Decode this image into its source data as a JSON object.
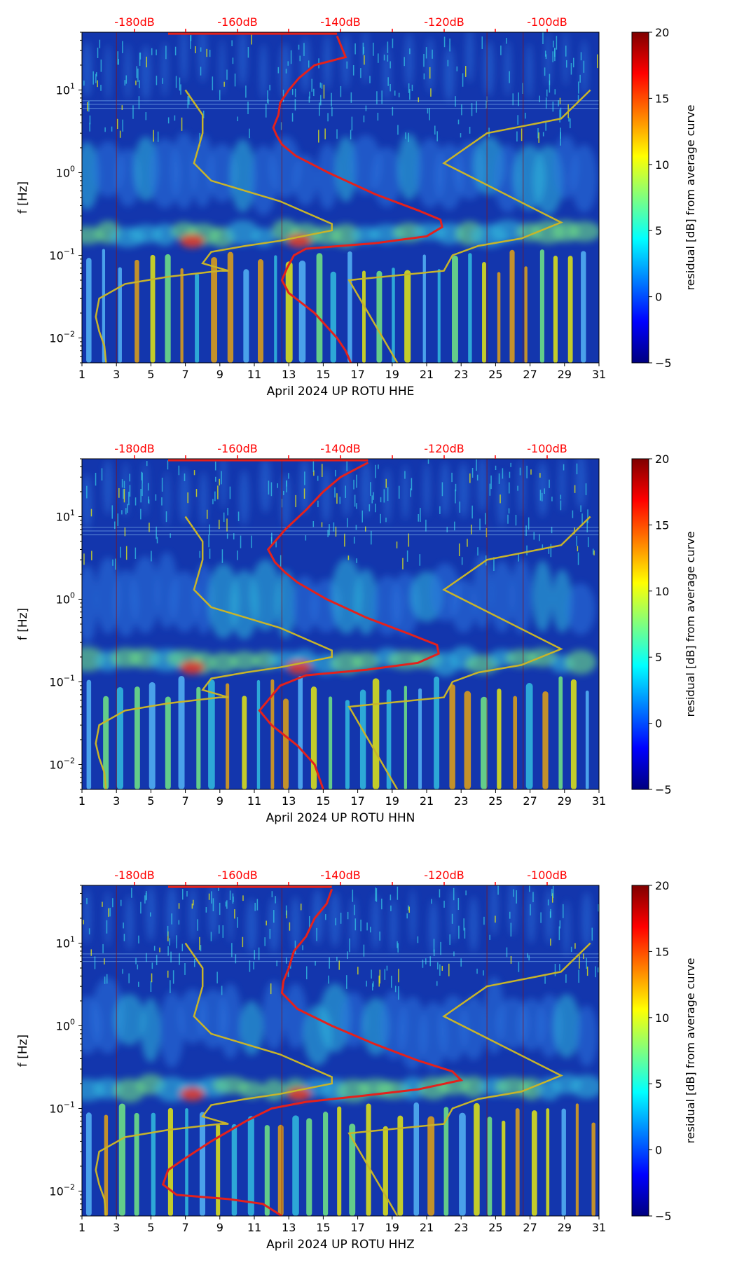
{
  "colors": {
    "spec_background": "#1336ad",
    "spec_light_blue": "#2f7fe8",
    "spec_cyan": "#37cfe6",
    "top_axis_red": "#ff0000",
    "psd_curve": "#e4211c",
    "noise_model": "#c8b42a",
    "colorbar_stops": [
      "#00007f",
      "#0000ff",
      "#007fff",
      "#00ffff",
      "#7fff7f",
      "#ffff00",
      "#ff7f00",
      "#ff0000",
      "#7f0000"
    ]
  },
  "shared": {
    "y_axis_label": "f [Hz]",
    "y_ticks": [
      {
        "value": 10,
        "base": "10",
        "exp": "1"
      },
      {
        "value": 1,
        "base": "10",
        "exp": "0"
      },
      {
        "value": 0.1,
        "base": "10",
        "exp": "−1"
      },
      {
        "value": 0.01,
        "base": "10",
        "exp": "−2"
      }
    ],
    "x_ticks": [
      "1",
      "3",
      "5",
      "7",
      "9",
      "11",
      "13",
      "15",
      "17",
      "19",
      "21",
      "23",
      "25",
      "27",
      "29",
      "31"
    ],
    "top_ticks": [
      "-180dB",
      "-160dB",
      "-140dB",
      "-120dB",
      "-100dB"
    ],
    "colorbar_label": "residual [dB] from average curve",
    "colorbar_ticks": [
      "20",
      "15",
      "10",
      "5",
      "0",
      "−5"
    ]
  },
  "chart_data": [
    {
      "type": "heatmap",
      "channel": "HHE",
      "xlabel": "April 2024 UP ROTU  HHE",
      "ylabel": "f [Hz]",
      "x_range": [
        1,
        31
      ],
      "y_range_hz": [
        0.005,
        50
      ],
      "y_scale": "log",
      "colorbar_range_db": [
        -5,
        20
      ],
      "top_axis_db": [
        -180,
        -160,
        -140,
        -120,
        -100
      ],
      "psd_curve_day_hz": [
        [
          15.8,
          45
        ],
        [
          16.3,
          25
        ],
        [
          14.5,
          20
        ],
        [
          13.6,
          14
        ],
        [
          13.0,
          10
        ],
        [
          12.5,
          7
        ],
        [
          12.4,
          5
        ],
        [
          12.1,
          3.5
        ],
        [
          12.3,
          2.8
        ],
        [
          12.6,
          2.2
        ],
        [
          13.4,
          1.6
        ],
        [
          15.3,
          1.0
        ],
        [
          18.0,
          0.55
        ],
        [
          20.5,
          0.35
        ],
        [
          21.8,
          0.27
        ],
        [
          21.9,
          0.22
        ],
        [
          21.0,
          0.17
        ],
        [
          18.0,
          0.14
        ],
        [
          14.0,
          0.12
        ],
        [
          13.3,
          0.1
        ],
        [
          12.9,
          0.07
        ],
        [
          12.6,
          0.05
        ],
        [
          13.0,
          0.035
        ],
        [
          14.5,
          0.02
        ],
        [
          15.8,
          0.01
        ],
        [
          16.3,
          0.007
        ],
        [
          16.6,
          0.005
        ]
      ],
      "noise_model_day_hz": [
        [
          7.0,
          10
        ],
        [
          8.0,
          5
        ],
        [
          8.0,
          3.0
        ],
        [
          7.5,
          1.3
        ],
        [
          8.5,
          0.8
        ],
        [
          12.5,
          0.45
        ],
        [
          15.5,
          0.24
        ],
        [
          15.5,
          0.2
        ],
        [
          12.5,
          0.15
        ],
        [
          10.5,
          0.13
        ],
        [
          8.5,
          0.11
        ],
        [
          8.0,
          0.08
        ],
        [
          9.5,
          0.065
        ],
        [
          9.0,
          0.065
        ],
        [
          6.0,
          0.055
        ],
        [
          3.5,
          0.045
        ],
        [
          2.0,
          0.03
        ],
        [
          1.8,
          0.018
        ],
        [
          2.0,
          0.012
        ],
        [
          2.3,
          0.008
        ],
        [
          2.4,
          0.005
        ]
      ],
      "high_noise_model_day_hz": [
        [
          30.5,
          10
        ],
        [
          28.8,
          4.5
        ],
        [
          24.5,
          3.0
        ],
        [
          22.0,
          1.3
        ],
        [
          28.8,
          0.25
        ],
        [
          26.5,
          0.16
        ],
        [
          24.0,
          0.13
        ],
        [
          22.5,
          0.1
        ],
        [
          22.0,
          0.065
        ],
        [
          16.5,
          0.05
        ],
        [
          19.3,
          0.005
        ]
      ]
    },
    {
      "type": "heatmap",
      "channel": "HHN",
      "xlabel": "April 2024 UP ROTU  HHN",
      "ylabel": "f [Hz]",
      "x_range": [
        1,
        31
      ],
      "y_range_hz": [
        0.005,
        50
      ],
      "y_scale": "log",
      "colorbar_range_db": [
        -5,
        20
      ],
      "top_axis_db": [
        -180,
        -160,
        -140,
        -120,
        -100
      ],
      "psd_curve_day_hz": [
        [
          17.6,
          45
        ],
        [
          16.0,
          30
        ],
        [
          15.0,
          20
        ],
        [
          14.0,
          12
        ],
        [
          12.8,
          7
        ],
        [
          11.8,
          4.0
        ],
        [
          12.2,
          2.8
        ],
        [
          12.8,
          2.1
        ],
        [
          13.5,
          1.6
        ],
        [
          15.2,
          1.0
        ],
        [
          17.5,
          0.6
        ],
        [
          20.0,
          0.38
        ],
        [
          21.6,
          0.28
        ],
        [
          21.7,
          0.22
        ],
        [
          20.5,
          0.17
        ],
        [
          17.5,
          0.14
        ],
        [
          14.0,
          0.12
        ],
        [
          12.5,
          0.09
        ],
        [
          11.8,
          0.06
        ],
        [
          11.3,
          0.045
        ],
        [
          12.0,
          0.03
        ],
        [
          13.5,
          0.017
        ],
        [
          14.5,
          0.01
        ],
        [
          15.0,
          0.005
        ]
      ],
      "noise_model_day_hz": [
        [
          7.0,
          10
        ],
        [
          8.0,
          5
        ],
        [
          8.0,
          3.0
        ],
        [
          7.5,
          1.3
        ],
        [
          8.5,
          0.8
        ],
        [
          12.5,
          0.45
        ],
        [
          15.5,
          0.24
        ],
        [
          15.5,
          0.2
        ],
        [
          12.5,
          0.15
        ],
        [
          10.5,
          0.13
        ],
        [
          8.5,
          0.11
        ],
        [
          8.0,
          0.08
        ],
        [
          9.5,
          0.065
        ],
        [
          9.0,
          0.065
        ],
        [
          6.0,
          0.055
        ],
        [
          3.5,
          0.045
        ],
        [
          2.0,
          0.03
        ],
        [
          1.8,
          0.018
        ],
        [
          2.0,
          0.012
        ],
        [
          2.3,
          0.008
        ],
        [
          2.4,
          0.005
        ]
      ],
      "high_noise_model_day_hz": [
        [
          30.5,
          10
        ],
        [
          28.8,
          4.5
        ],
        [
          24.5,
          3.0
        ],
        [
          22.0,
          1.3
        ],
        [
          28.8,
          0.25
        ],
        [
          26.5,
          0.16
        ],
        [
          24.0,
          0.13
        ],
        [
          22.5,
          0.1
        ],
        [
          22.0,
          0.065
        ],
        [
          16.5,
          0.05
        ],
        [
          19.3,
          0.005
        ]
      ]
    },
    {
      "type": "heatmap",
      "channel": "HHZ",
      "xlabel": "April 2024 UP ROTU  HHZ",
      "ylabel": "f [Hz]",
      "x_range": [
        1,
        31
      ],
      "y_range_hz": [
        0.005,
        50
      ],
      "y_scale": "log",
      "colorbar_range_db": [
        -5,
        20
      ],
      "top_axis_db": [
        -180,
        -160,
        -140,
        -120,
        -100
      ],
      "psd_curve_day_hz": [
        [
          15.5,
          45
        ],
        [
          15.2,
          30
        ],
        [
          14.5,
          20
        ],
        [
          14.0,
          12
        ],
        [
          13.3,
          8
        ],
        [
          13.0,
          5
        ],
        [
          12.7,
          3.5
        ],
        [
          12.6,
          2.5
        ],
        [
          13.5,
          1.6
        ],
        [
          15.5,
          1.0
        ],
        [
          18.0,
          0.6
        ],
        [
          20.5,
          0.38
        ],
        [
          22.5,
          0.28
        ],
        [
          23.0,
          0.22
        ],
        [
          20.5,
          0.17
        ],
        [
          17.0,
          0.14
        ],
        [
          14.0,
          0.12
        ],
        [
          12.0,
          0.1
        ],
        [
          10.5,
          0.07
        ],
        [
          8.5,
          0.04
        ],
        [
          7.0,
          0.025
        ],
        [
          6.0,
          0.018
        ],
        [
          5.7,
          0.012
        ],
        [
          6.5,
          0.009
        ],
        [
          9.5,
          0.008
        ],
        [
          11.5,
          0.007
        ],
        [
          12.6,
          0.005
        ]
      ],
      "noise_model_day_hz": [
        [
          7.0,
          10
        ],
        [
          8.0,
          5
        ],
        [
          8.0,
          3.0
        ],
        [
          7.5,
          1.3
        ],
        [
          8.5,
          0.8
        ],
        [
          12.5,
          0.45
        ],
        [
          15.5,
          0.24
        ],
        [
          15.5,
          0.2
        ],
        [
          12.5,
          0.15
        ],
        [
          10.5,
          0.13
        ],
        [
          8.5,
          0.11
        ],
        [
          8.0,
          0.08
        ],
        [
          9.5,
          0.065
        ],
        [
          9.0,
          0.065
        ],
        [
          6.0,
          0.055
        ],
        [
          3.5,
          0.045
        ],
        [
          2.0,
          0.03
        ],
        [
          1.8,
          0.018
        ],
        [
          2.0,
          0.012
        ],
        [
          2.3,
          0.008
        ],
        [
          2.4,
          0.005
        ]
      ],
      "high_noise_model_day_hz": [
        [
          30.5,
          10
        ],
        [
          28.8,
          4.5
        ],
        [
          24.5,
          3.0
        ],
        [
          22.0,
          1.3
        ],
        [
          28.8,
          0.25
        ],
        [
          26.5,
          0.16
        ],
        [
          24.0,
          0.13
        ],
        [
          22.5,
          0.1
        ],
        [
          22.0,
          0.065
        ],
        [
          16.5,
          0.05
        ],
        [
          19.3,
          0.005
        ]
      ]
    }
  ]
}
